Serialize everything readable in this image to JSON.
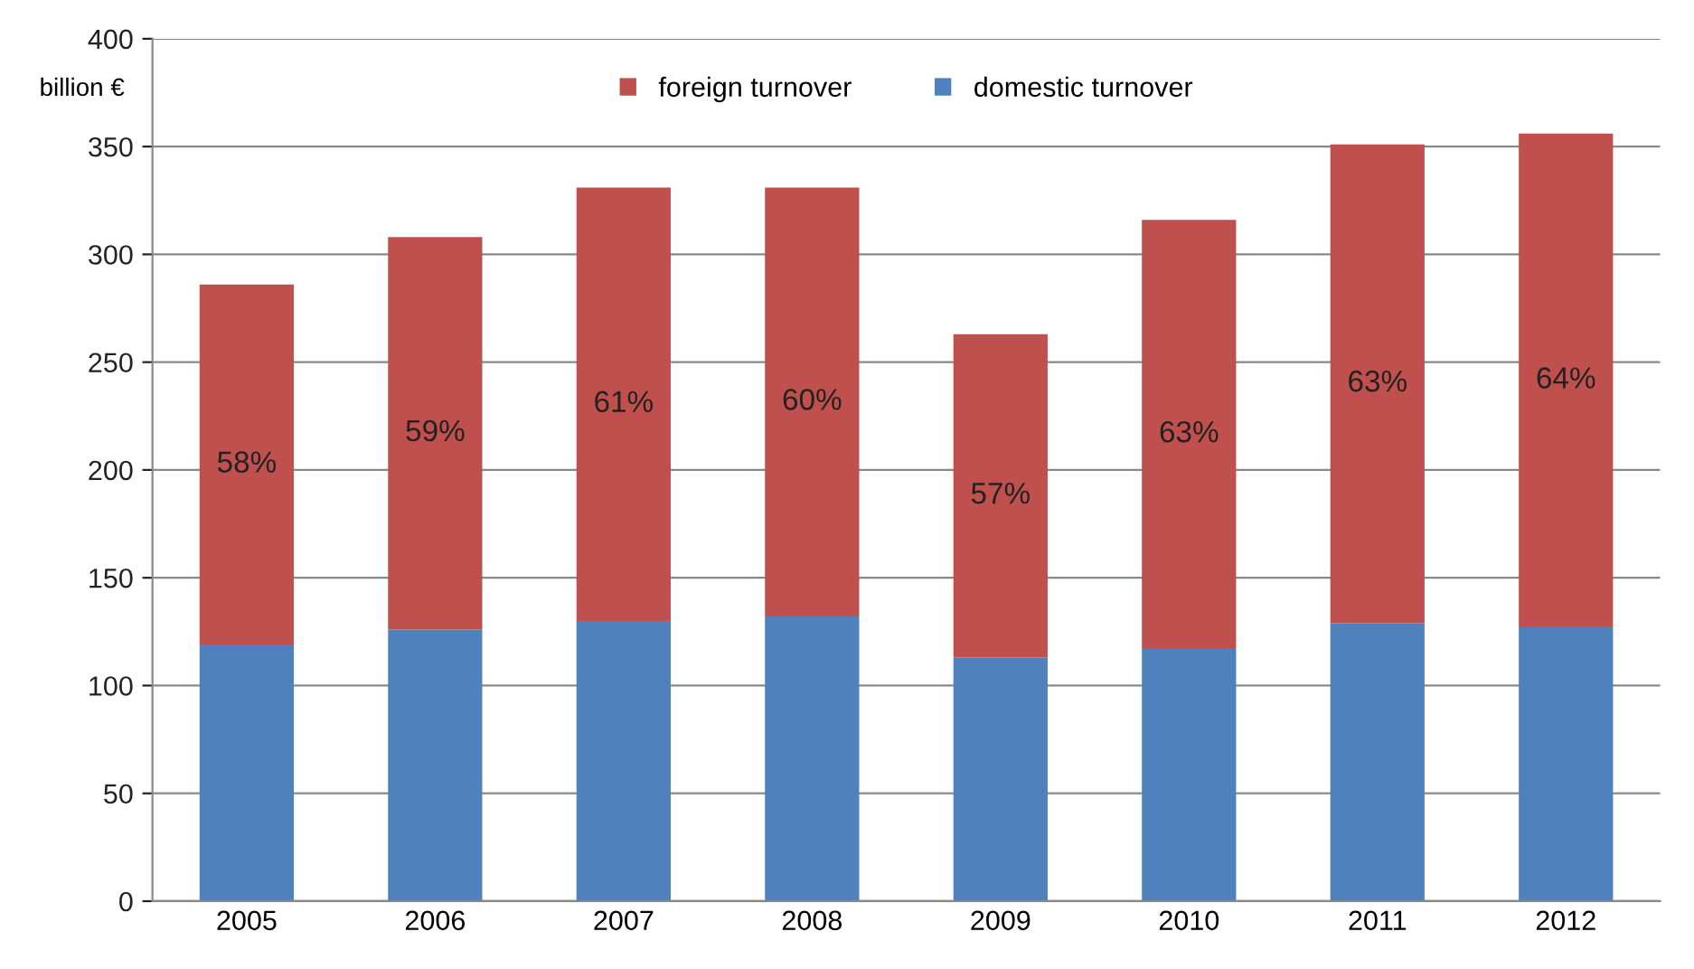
{
  "chart_data": {
    "type": "bar",
    "stacked": true,
    "ylabel": "billion €",
    "categories": [
      "2005",
      "2006",
      "2007",
      "2008",
      "2009",
      "2010",
      "2011",
      "2012"
    ],
    "series": [
      {
        "name": "domestic turnover",
        "color": "#4f81bd",
        "values": [
          119,
          126,
          130,
          132,
          113,
          117,
          129,
          127
        ]
      },
      {
        "name": "foreign turnover",
        "color": "#c0504d",
        "values": [
          167,
          182,
          201,
          199,
          150,
          199,
          222,
          229
        ]
      }
    ],
    "annotations": [
      "58%",
      "59%",
      "61%",
      "60%",
      "57%",
      "63%",
      "63%",
      "64%"
    ],
    "ylim": [
      0,
      400
    ],
    "yticks": [
      0,
      50,
      100,
      150,
      200,
      250,
      300,
      350,
      400
    ],
    "grid": "y",
    "legend": "top"
  }
}
